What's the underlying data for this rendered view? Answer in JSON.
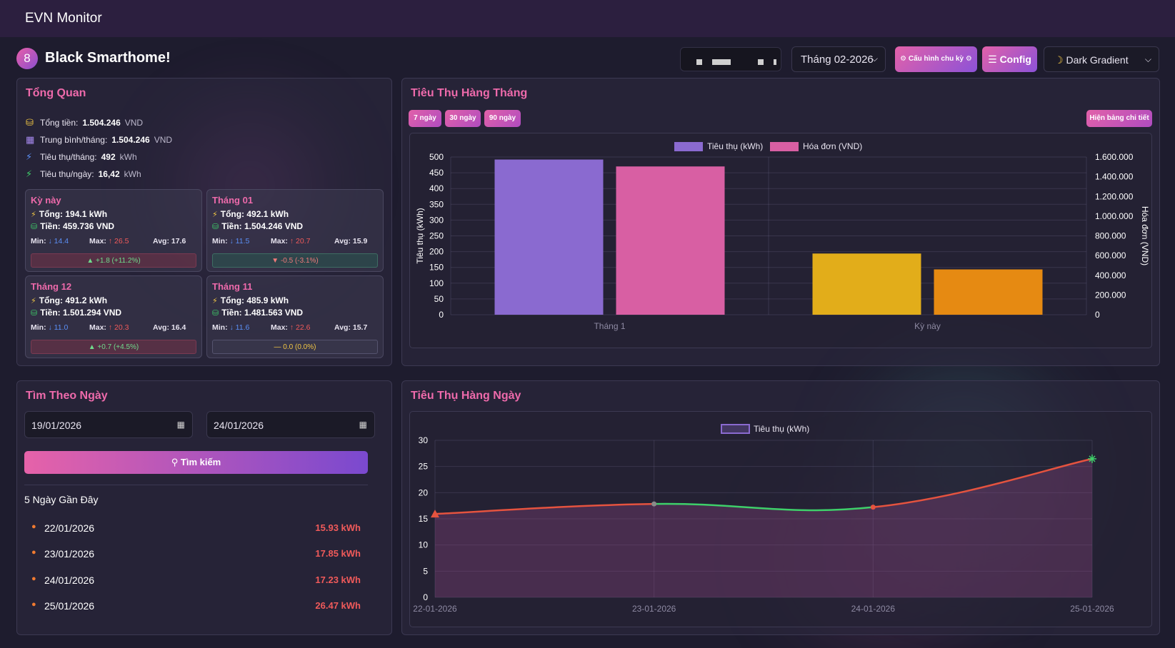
{
  "app": {
    "title": "EVN Monitor"
  },
  "header": {
    "badge": "8",
    "home_name": "Black Smarthome!",
    "month_value": "Tháng 02-2026",
    "cycle_button": "Cấu hình chu kỳ",
    "config_button": "Config",
    "theme_value": "Dark Gradient"
  },
  "colors": {
    "accent": "#ee6aab",
    "bar_purple": "#8a6ad0",
    "bar_pink": "#d85fa3",
    "bar_yellow": "#e2ad1a",
    "bar_orange": "#e68a12",
    "line_red": "#e5533f",
    "line_green": "#3ed06a"
  },
  "overview": {
    "title": "Tổng Quan",
    "items": [
      {
        "icon": "coins-icon",
        "label": "Tổng tiền:",
        "value": "1.504.246",
        "unit": "VND"
      },
      {
        "icon": "calendar-icon",
        "label": "Trung bình/tháng:",
        "value": "1.504.246",
        "unit": "VND"
      },
      {
        "icon": "bolt-icon",
        "label": "Tiêu thụ/tháng:",
        "value": "492",
        "unit": "kWh"
      },
      {
        "icon": "bolt-icon",
        "label": "Tiêu thụ/ngày:",
        "value": "16,42",
        "unit": "kWh"
      }
    ],
    "cards": [
      {
        "title": "Kỳ này",
        "total": "Tổng: 194.1 kWh",
        "money": "Tiền: 459.736 VND",
        "min_label": "Min:",
        "min": "14.4",
        "max_label": "Max:",
        "max": "26.5",
        "avg": "Avg: 17.6",
        "change": "▲ +1.8 (+11.2%)",
        "trend": "up"
      },
      {
        "title": "Tháng 01",
        "total": "Tổng: 492.1 kWh",
        "money": "Tiền: 1.504.246 VND",
        "min_label": "Min:",
        "min": "11.5",
        "max_label": "Max:",
        "max": "20.7",
        "avg": "Avg: 15.9",
        "change": "▼ -0.5 (-3.1%)",
        "trend": "down"
      },
      {
        "title": "Tháng 12",
        "total": "Tổng: 491.2 kWh",
        "money": "Tiền: 1.501.294 VND",
        "min_label": "Min:",
        "min": "11.0",
        "max_label": "Max:",
        "max": "20.3",
        "avg": "Avg: 16.4",
        "change": "▲ +0.7 (+4.5%)",
        "trend": "up"
      },
      {
        "title": "Tháng 11",
        "total": "Tổng: 485.9 kWh",
        "money": "Tiền: 1.481.563 VND",
        "min_label": "Min:",
        "min": "11.6",
        "max_label": "Max:",
        "max": "22.6",
        "avg": "Avg: 15.7",
        "change": "— 0.0 (0.0%)",
        "trend": "flat"
      }
    ]
  },
  "monthly": {
    "title": "Tiêu Thụ Hàng Tháng",
    "chips": [
      "7 ngày",
      "30 ngày",
      "90 ngày"
    ],
    "detail_button": "Hiện bảng chi tiết"
  },
  "search": {
    "title": "Tìm Theo Ngày",
    "from": "19/01/2026",
    "to": "24/01/2026",
    "button": "Tìm kiếm",
    "recent_title": "5 Ngày Gần Đây",
    "recent": [
      {
        "date": "22/01/2026",
        "value": "15.93 kWh"
      },
      {
        "date": "23/01/2026",
        "value": "17.85 kWh"
      },
      {
        "date": "24/01/2026",
        "value": "17.23 kWh"
      },
      {
        "date": "25/01/2026",
        "value": "26.47 kWh"
      }
    ]
  },
  "daily": {
    "title": "Tiêu Thụ Hàng Ngày"
  },
  "chart_data": [
    {
      "type": "bar",
      "categories": [
        "Tháng 1",
        "Kỳ này"
      ],
      "series": [
        {
          "name": "Tiêu thụ (kWh)",
          "axis": "left",
          "values": [
            492,
            194
          ]
        },
        {
          "name": "Hóa đơn (VND)",
          "axis": "right",
          "values": [
            1504246,
            459736
          ]
        }
      ],
      "ylabel": "Tiêu thụ (kWh)",
      "y2label": "Hóa đơn (VND)",
      "ylim": [
        0,
        500
      ],
      "y2lim": [
        0,
        1600000
      ],
      "yticks": [
        "0",
        "50",
        "100",
        "150",
        "200",
        "250",
        "300",
        "350",
        "400",
        "450",
        "500"
      ],
      "y2ticks": [
        "0",
        "200.000",
        "400.000",
        "600.000",
        "800.000",
        "1.000.000",
        "1.200.000",
        "1.400.000",
        "1.600.000"
      ],
      "legend": "top"
    },
    {
      "type": "line",
      "x": [
        "22-01-2026",
        "23-01-2026",
        "24-01-2026",
        "25-01-2026"
      ],
      "series": [
        {
          "name": "Tiêu thụ (kWh)",
          "values": [
            15.93,
            17.85,
            17.23,
            26.47
          ]
        }
      ],
      "ylim": [
        0,
        30
      ],
      "yticks": [
        "0",
        "5",
        "10",
        "15",
        "20",
        "25",
        "30"
      ],
      "legend": "top"
    }
  ]
}
